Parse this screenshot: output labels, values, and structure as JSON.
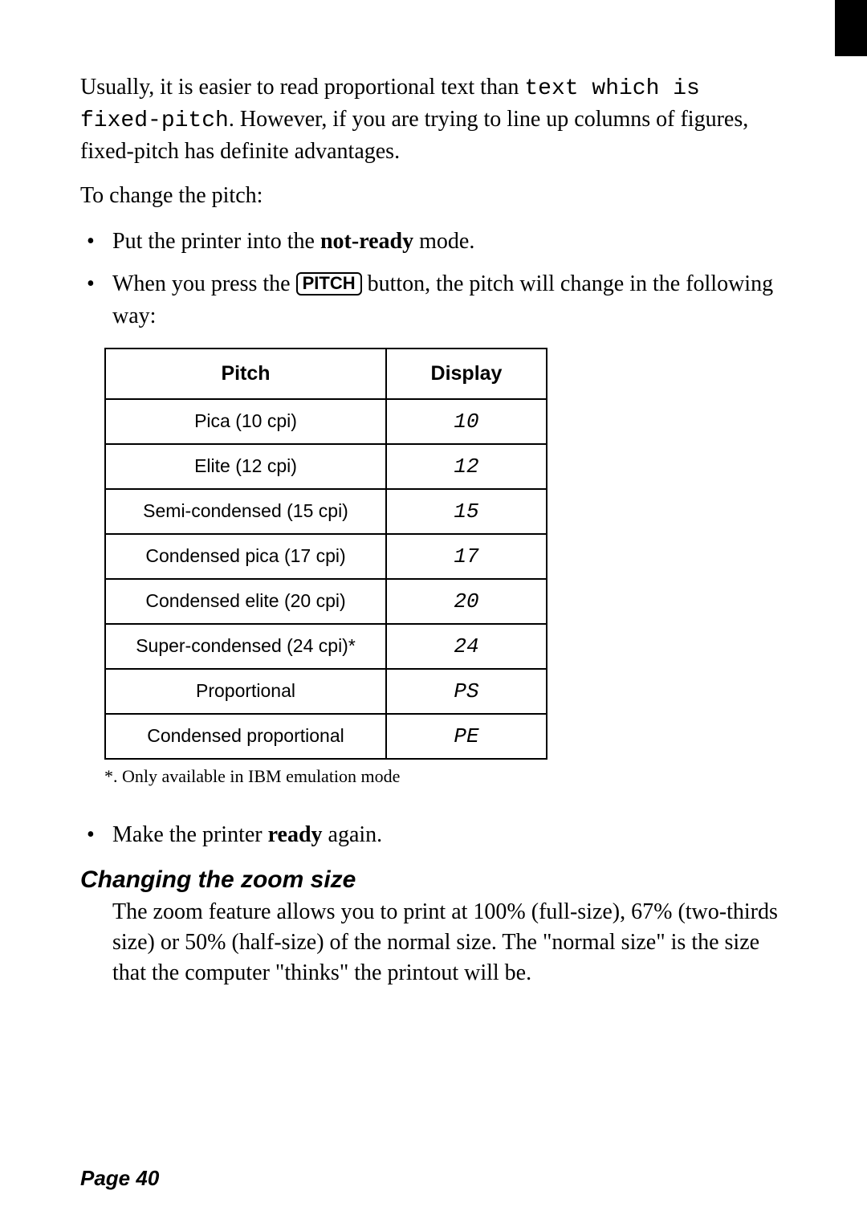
{
  "intro": {
    "part1": "Usually, it is easier to read proportional text than ",
    "mono1": "text which is fixed-pitch",
    "part2": ". However, if you are trying to line up columns of figures, fixed-pitch has definite advantages."
  },
  "changeLine": "To change the pitch:",
  "bullets1": {
    "b1_a": "Put the printer into the ",
    "b1_bold": "not-ready",
    "b1_b": " mode.",
    "b2_a": "When you press the ",
    "b2_btn": "PITCH",
    "b2_b": " button, the pitch will change in the following way:"
  },
  "table": {
    "headers": {
      "pitch": "Pitch",
      "display": "Display"
    },
    "rows": [
      {
        "pitch": "Pica (10 cpi)",
        "display": "10"
      },
      {
        "pitch": "Elite (12 cpi)",
        "display": "12"
      },
      {
        "pitch": "Semi-condensed (15 cpi)",
        "display": "15"
      },
      {
        "pitch": "Condensed pica (17 cpi)",
        "display": "17"
      },
      {
        "pitch": "Condensed elite (20 cpi)",
        "display": "20"
      },
      {
        "pitch": "Super-condensed (24 cpi)*",
        "display": "24"
      },
      {
        "pitch": "Proportional",
        "display": "PS"
      },
      {
        "pitch": "Condensed proportional",
        "display": "PE"
      }
    ]
  },
  "footnote": "*. Only available in IBM emulation mode",
  "bullets2": {
    "b3_a": "Make the printer ",
    "b3_bold": "ready",
    "b3_b": " again."
  },
  "section": {
    "heading": "Changing the zoom size",
    "body": "The zoom feature allows you to print at 100% (full-size), 67% (two-thirds size) or 50% (half-size) of the normal size. The \"normal size\" is the size that the computer \"thinks\" the printout will be."
  },
  "pageNum": "Page 40"
}
